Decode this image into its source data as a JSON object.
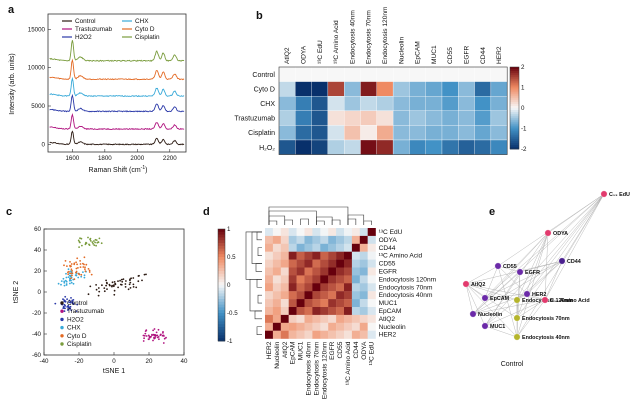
{
  "panel_labels": {
    "a": "a",
    "b": "b",
    "c": "c",
    "d": "d",
    "e": "e"
  },
  "colors": {
    "control": "#2b1a12",
    "trastuzumab": "#b0137f",
    "h2o2": "#2a38a8",
    "chx": "#38a9d8",
    "cytod": "#e36a24",
    "cisplatin": "#7a9c3d"
  },
  "chart_data": [
    {
      "id": "a",
      "type": "line",
      "title": "",
      "xlabel": "Raman Shift (cm⁻¹)",
      "ylabel": "Intensity (arb. units)",
      "xlim": [
        1450,
        2300
      ],
      "ylim": [
        -1000,
        17000
      ],
      "xticks": [
        "1600",
        "1800",
        "2000",
        "2200"
      ],
      "yticks": [
        "0",
        "5000",
        "10000",
        "15000"
      ],
      "series": [
        {
          "name": "Control",
          "offset": 0
        },
        {
          "name": "Trastuzumab",
          "offset": 2000
        },
        {
          "name": "H2O2",
          "offset": 4300
        },
        {
          "name": "CHX",
          "offset": 6300
        },
        {
          "name": "Cyto D",
          "offset": 8500
        },
        {
          "name": "Cisplatin",
          "offset": 10900
        }
      ],
      "legend": [
        "Control",
        "CHX",
        "Trastuzumab",
        "Cyto D",
        "H2O2",
        "Cisplatin"
      ]
    },
    {
      "id": "b",
      "type": "heatmap",
      "rows": [
        "Control",
        "Cyto D",
        "CHX",
        "Trastuzumab",
        "Cisplatin",
        "H₂O₂"
      ],
      "cols": [
        "AtlQ2",
        "ODYA",
        "¹³C EdU",
        "¹³C Amino Acid",
        "Endocytosis 40nm",
        "Endocytosis 70nm",
        "Endocytosis 120nm",
        "Nucleolin",
        "EpCAM",
        "MUC1",
        "CD55",
        "EGFR",
        "CD44",
        "HER2"
      ],
      "values": [
        [
          0,
          0,
          0,
          0,
          0,
          0,
          0,
          0,
          0,
          0,
          0,
          0,
          0,
          0
        ],
        [
          -0.3,
          -2,
          -2,
          1.5,
          -0.6,
          1.8,
          1,
          -0.5,
          -0.7,
          -0.8,
          -1,
          -0.6,
          -1.4,
          -0.8
        ],
        [
          -0.6,
          -1.2,
          -1.6,
          -0.2,
          -0.5,
          -0.3,
          -0.4,
          -0.6,
          -0.7,
          -0.7,
          -0.9,
          -0.6,
          -1,
          -0.7
        ],
        [
          -0.4,
          -1.2,
          -1.6,
          0.2,
          0.3,
          0.4,
          0.2,
          -0.6,
          -0.5,
          -0.6,
          -0.7,
          -0.6,
          -0.9,
          -0.5
        ],
        [
          -0.6,
          -1.4,
          -1.6,
          -0.2,
          0.5,
          0.1,
          0.7,
          -0.6,
          -0.6,
          -0.7,
          -0.7,
          -0.6,
          -0.8,
          -0.6
        ],
        [
          -1.6,
          -2,
          -1.8,
          -0.4,
          -0.3,
          1.9,
          1.7,
          -0.7,
          -1.1,
          -1,
          -1.3,
          -1.5,
          -1.4,
          -1.1
        ]
      ],
      "colorbar_ticks": [
        "2",
        "1",
        "0",
        "-1",
        "-2"
      ],
      "vmin": -2,
      "vmax": 2
    },
    {
      "id": "c",
      "type": "scatter",
      "xlabel": "tSNE 1",
      "ylabel": "tSNE 2",
      "xlim": [
        -40,
        40
      ],
      "ylim": [
        -60,
        60
      ],
      "xticks": [
        "-40",
        "-20",
        "0",
        "20",
        "40"
      ],
      "yticks": [
        "60",
        "40",
        "20",
        "0",
        "-20",
        "-40",
        "-60"
      ],
      "clusters": [
        {
          "name": "Control",
          "cx": 3,
          "cy": 8,
          "sx": 13,
          "sy": 5,
          "n": 55,
          "tilt": 0.35
        },
        {
          "name": "Trastuzumab",
          "cx": 24,
          "cy": -42,
          "sx": 5,
          "sy": 4,
          "n": 45,
          "tilt": 0
        },
        {
          "name": "H2O2",
          "cx": -27,
          "cy": -12,
          "sx": 4,
          "sy": 5,
          "n": 40,
          "tilt": 0
        },
        {
          "name": "CHX",
          "cx": -24,
          "cy": 13,
          "sx": 6,
          "sy": 6,
          "n": 45,
          "tilt": 0.2
        },
        {
          "name": "Cyto D",
          "cx": -20,
          "cy": 22,
          "sx": 6,
          "sy": 8,
          "n": 45,
          "tilt": 0
        },
        {
          "name": "Cisplatin",
          "cx": -14,
          "cy": 48,
          "sx": 6,
          "sy": 3,
          "n": 30,
          "tilt": 0
        }
      ],
      "legend": [
        "Control",
        "Trastuzumab",
        "H2O2",
        "CHX",
        "Cyto D",
        "Cisplatin"
      ]
    },
    {
      "id": "d",
      "type": "heatmap",
      "labels": [
        "¹³C EdU",
        "ODYA",
        "CD44",
        "¹³C Amino Acid",
        "CD55",
        "EGFR",
        "Endocytosis 120nm",
        "Endocytosis 70nm",
        "Endocytosis 40nm",
        "MUC1",
        "EpCAM",
        "AtlQ2",
        "Nucleolin",
        "HER2"
      ],
      "xlabels": [
        "HER2",
        "Nucleolin",
        "AtlQ2",
        "EpCAM",
        "MUC1",
        "Endocytosis 40nm",
        "Endocytosis 70nm",
        "Endocytosis 120nm",
        "EGFR",
        "CD55",
        "¹³C Amino Acid",
        "CD44",
        "ODYA",
        "¹³C EdU"
      ],
      "colorbar_ticks": [
        "1",
        "0.5",
        "0",
        "-0.5",
        "-1"
      ],
      "vmin": -1,
      "vmax": 1
    },
    {
      "id": "e",
      "type": "network",
      "caption": "Control",
      "nodes": [
        {
          "label": "C₁₃ EdU",
          "color": "#e23a6d"
        },
        {
          "label": "ODYA",
          "color": "#e23a6d"
        },
        {
          "label": "CD44",
          "color": "#4a1f8e"
        },
        {
          "label": "CD55",
          "color": "#6b2aa8"
        },
        {
          "label": "EGFR",
          "color": "#6b2aa8"
        },
        {
          "label": "AtlQ2",
          "color": "#e23a6d"
        },
        {
          "label": "HER2",
          "color": "#6b2aa8"
        },
        {
          "label": "EpCAM",
          "color": "#6b2aa8"
        },
        {
          "label": "Endocytosis 120nm",
          "color": "#b5b52c"
        },
        {
          "label": "C₁₃ Amino Acid",
          "color": "#e23a6d"
        },
        {
          "label": "Nucleolin",
          "color": "#6b2aa8"
        },
        {
          "label": "Endocytosis 70nm",
          "color": "#b5b52c"
        },
        {
          "label": "MUC1",
          "color": "#6b2aa8"
        },
        {
          "label": "Endocytosis 40nm",
          "color": "#b5b52c"
        }
      ]
    }
  ]
}
